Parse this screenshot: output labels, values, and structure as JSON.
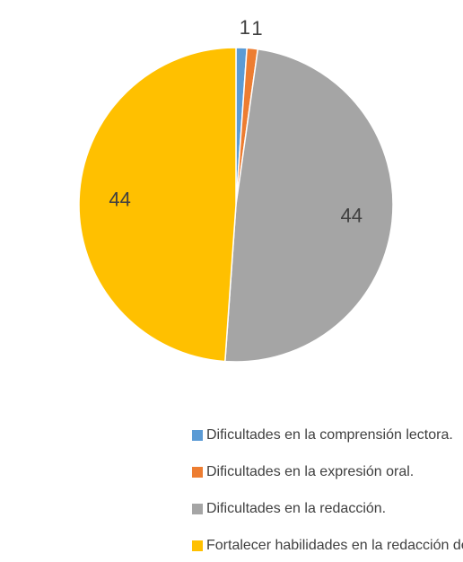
{
  "chart_data": {
    "type": "pie",
    "categories": [
      "Dificultades en la comprensión lectora.",
      "Dificultades en la expresión oral.",
      "Dificultades en la redacción.",
      "Fortalecer habilidades en la redacción de textos."
    ],
    "values": [
      1,
      1,
      44,
      44
    ],
    "colors": [
      "#5b9bd5",
      "#ed7d31",
      "#a5a5a5",
      "#ffc000"
    ],
    "legend": "bottom"
  }
}
